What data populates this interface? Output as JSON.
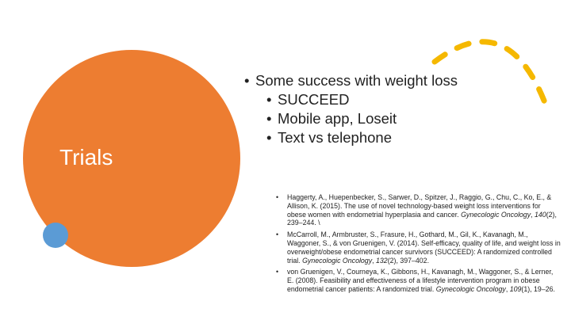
{
  "slide": {
    "title": "Trials",
    "bullets": [
      {
        "text": "Some success with weight loss",
        "level": 1
      },
      {
        "text": "SUCCEED",
        "level": 2
      },
      {
        "text": "Mobile app, Loseit",
        "level": 2
      },
      {
        "text": "Text vs telephone",
        "level": 2
      }
    ],
    "references": [
      [
        {
          "text": "Haggerty, A., Huepenbecker, S., Sarwer, D., Spitzer, J., Raggio, G., Chu, C., Ko, E., & Allison, K. (2015). The use of novel technology-based weight loss interventions for obese women with endometrial hyperplasia and cancer. "
        },
        {
          "text": "Gynecologic Oncology",
          "italic": true
        },
        {
          "text": ", "
        },
        {
          "text": "140",
          "italic": true
        },
        {
          "text": "(2), 239–244. \\"
        }
      ],
      [
        {
          "text": "McCarroll, M., Armbruster, S., Frasure, H., Gothard, M., Gil, K., Kavanagh, M., Waggoner, S., & von Gruenigen, V. (2014). Self-efficacy, quality of life, and weight loss in overweight/obese endometrial cancer survivors (SUCCEED): A randomized controlled trial. "
        },
        {
          "text": "Gynecologic Oncology",
          "italic": true
        },
        {
          "text": ", "
        },
        {
          "text": "132",
          "italic": true
        },
        {
          "text": "(2), 397–402."
        }
      ],
      [
        {
          "text": "von Gruenigen, V., Courneya, K., Gibbons, H., Kavanagh, M., Waggoner, S., & Lerner, E. (2008). Feasibility and effectiveness of a lifestyle intervention program in obese endometrial cancer patients: A randomized trial. "
        },
        {
          "text": "Gynecologic Oncology",
          "italic": true
        },
        {
          "text": ", "
        },
        {
          "text": "109",
          "italic": true
        },
        {
          "text": "(1), 19–26."
        }
      ]
    ]
  }
}
